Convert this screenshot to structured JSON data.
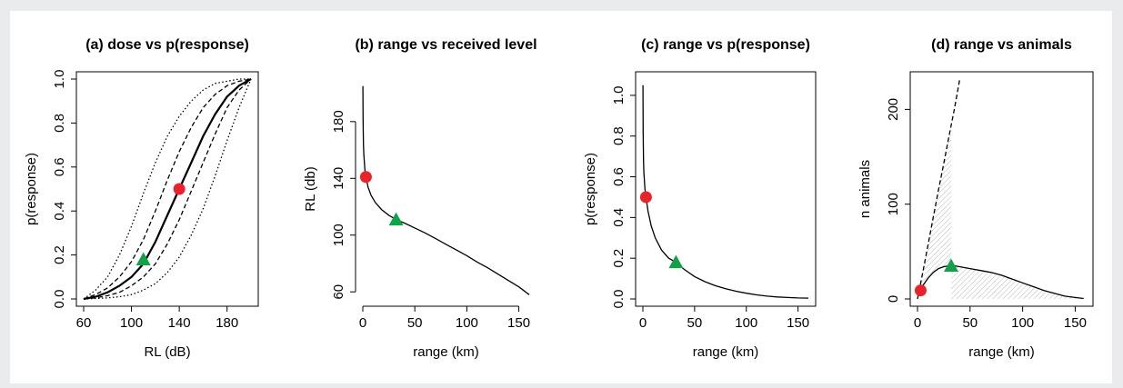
{
  "chart_data": [
    {
      "type": "line",
      "title": "(a) dose vs p(response)",
      "xlabel": "RL (dB)",
      "ylabel": "p(response)",
      "xlim": [
        60,
        200
      ],
      "ylim": [
        0,
        1
      ],
      "xticks": [
        60,
        100,
        140,
        180
      ],
      "yticks": [
        "0.0",
        "0.2",
        "0.4",
        "0.6",
        "0.8",
        "1.0"
      ],
      "series": [
        {
          "style": "solid",
          "x": [
            60,
            70,
            80,
            90,
            100,
            110,
            120,
            130,
            140,
            150,
            160,
            170,
            180,
            190,
            200
          ],
          "y": [
            0,
            0.01,
            0.03,
            0.06,
            0.1,
            0.16,
            0.26,
            0.38,
            0.5,
            0.62,
            0.74,
            0.84,
            0.92,
            0.97,
            1.0
          ]
        },
        {
          "style": "dashed",
          "x": [
            60,
            70,
            80,
            90,
            100,
            110,
            120,
            130,
            140,
            150,
            160,
            170,
            180,
            190,
            200
          ],
          "y": [
            0,
            0.02,
            0.05,
            0.1,
            0.17,
            0.27,
            0.4,
            0.54,
            0.67,
            0.78,
            0.87,
            0.93,
            0.97,
            0.99,
            1.0
          ]
        },
        {
          "style": "dashed",
          "x": [
            60,
            70,
            80,
            90,
            100,
            110,
            120,
            130,
            140,
            150,
            160,
            170,
            180,
            190,
            200
          ],
          "y": [
            0,
            0.005,
            0.015,
            0.03,
            0.06,
            0.1,
            0.16,
            0.25,
            0.36,
            0.49,
            0.62,
            0.75,
            0.87,
            0.95,
            1.0
          ]
        },
        {
          "style": "dotted",
          "x": [
            60,
            70,
            80,
            90,
            100,
            110,
            120,
            130,
            140,
            150,
            160,
            170,
            180,
            190,
            200
          ],
          "y": [
            0,
            0.04,
            0.1,
            0.2,
            0.33,
            0.48,
            0.62,
            0.74,
            0.83,
            0.9,
            0.95,
            0.98,
            0.99,
            1.0,
            1.0
          ]
        },
        {
          "style": "dotted",
          "x": [
            60,
            70,
            80,
            90,
            100,
            110,
            120,
            130,
            140,
            150,
            160,
            170,
            180,
            190,
            200
          ],
          "y": [
            0,
            0.002,
            0.005,
            0.01,
            0.02,
            0.04,
            0.07,
            0.12,
            0.19,
            0.29,
            0.41,
            0.56,
            0.72,
            0.87,
            1.0
          ]
        }
      ],
      "markers": [
        {
          "shape": "circle",
          "color": "#e8232a",
          "x": 140,
          "y": 0.5
        },
        {
          "shape": "triangle",
          "color": "#12a049",
          "x": 110,
          "y": 0.18
        }
      ]
    },
    {
      "type": "line",
      "title": "(b) range vs received level",
      "xlabel": "range (km)",
      "ylabel": "RL (db)",
      "xlim": [
        0,
        160
      ],
      "ylim": [
        55,
        210
      ],
      "xticks": [
        0,
        50,
        100,
        150
      ],
      "yticks": [
        60,
        100,
        140,
        180
      ],
      "series": [
        {
          "style": "solid",
          "x": [
            0.1,
            0.3,
            0.6,
            1,
            2,
            3,
            5,
            8,
            12,
            18,
            25,
            32,
            40,
            50,
            60,
            70,
            80,
            90,
            100,
            110,
            120,
            130,
            140,
            150,
            160
          ],
          "y": [
            205,
            181,
            164,
            157,
            146,
            141,
            134,
            128,
            123,
            118,
            114,
            111,
            108.5,
            105,
            101.5,
            97.5,
            93.5,
            89.5,
            85.5,
            81,
            77,
            72.5,
            68,
            63.5,
            58
          ]
        }
      ],
      "markers": [
        {
          "shape": "circle",
          "color": "#e8232a",
          "x": 3,
          "y": 141
        },
        {
          "shape": "triangle",
          "color": "#12a049",
          "x": 32,
          "y": 111
        }
      ]
    },
    {
      "type": "line",
      "title": "(c) range vs p(response)",
      "xlabel": "range (km)",
      "ylabel": "p(response)",
      "xlim": [
        0,
        160
      ],
      "ylim": [
        0,
        1.08
      ],
      "xticks": [
        0,
        50,
        100,
        150
      ],
      "yticks": [
        "0.0",
        "0.2",
        "0.4",
        "0.6",
        "0.8",
        "1.0"
      ],
      "series": [
        {
          "style": "solid",
          "x": [
            0.1,
            0.3,
            0.6,
            1,
            2,
            3,
            5,
            8,
            12,
            18,
            25,
            32,
            40,
            50,
            60,
            70,
            80,
            90,
            100,
            110,
            120,
            130,
            140,
            150,
            160
          ],
          "y": [
            1.05,
            0.82,
            0.68,
            0.62,
            0.54,
            0.5,
            0.43,
            0.36,
            0.3,
            0.24,
            0.2,
            0.18,
            0.145,
            0.11,
            0.085,
            0.065,
            0.05,
            0.038,
            0.028,
            0.02,
            0.014,
            0.01,
            0.007,
            0.005,
            0.004
          ]
        }
      ],
      "markers": [
        {
          "shape": "circle",
          "color": "#e8232a",
          "x": 3,
          "y": 0.5
        },
        {
          "shape": "triangle",
          "color": "#12a049",
          "x": 32,
          "y": 0.18
        }
      ]
    },
    {
      "type": "line",
      "title": "(d) range vs animals",
      "xlabel": "range (km)",
      "ylabel": "n animals",
      "xlim": [
        0,
        160
      ],
      "ylim": [
        0,
        232
      ],
      "xticks": [
        0,
        50,
        100,
        150
      ],
      "yticks": [
        0,
        100,
        200
      ],
      "series": [
        {
          "style": "dashed",
          "x": [
            0,
            5,
            10,
            15,
            20,
            25,
            30,
            35,
            40
          ],
          "y": [
            0,
            28,
            57,
            86,
            115,
            143,
            172,
            200,
            231
          ]
        },
        {
          "style": "solid",
          "x": [
            2,
            5,
            10,
            15,
            20,
            25,
            30,
            35,
            40,
            50,
            60,
            70,
            80,
            90,
            100,
            110,
            120,
            130,
            140,
            150,
            158
          ],
          "y": [
            8,
            14,
            22,
            28,
            32,
            34,
            35,
            35,
            34,
            32,
            30,
            28,
            25,
            21,
            17,
            13,
            9,
            6,
            3,
            1.5,
            0.5
          ]
        }
      ],
      "shaded_regions": [
        {
          "pattern": "hatched",
          "x": [
            2,
            5,
            10,
            15,
            20,
            25,
            30,
            32
          ],
          "y_lower": [
            8,
            14,
            22,
            28,
            32,
            34,
            35,
            35
          ],
          "y_upper": [
            11,
            28,
            57,
            86,
            115,
            143,
            172,
            184
          ]
        },
        {
          "pattern": "hatched",
          "x": [
            32,
            40,
            50,
            60,
            70,
            80,
            90,
            100,
            110,
            120,
            130,
            140,
            150,
            158
          ],
          "y_lower": [
            0,
            0,
            0,
            0,
            0,
            0,
            0,
            0,
            0,
            0,
            0,
            0,
            0,
            0
          ],
          "y_upper": [
            35,
            34,
            32,
            30,
            28,
            25,
            21,
            17,
            13,
            9,
            6,
            3,
            1.5,
            0.5
          ]
        }
      ],
      "markers": [
        {
          "shape": "circle",
          "color": "#e8232a",
          "x": 3,
          "y": 9
        },
        {
          "shape": "triangle",
          "color": "#12a049",
          "x": 32,
          "y": 35
        }
      ]
    }
  ]
}
